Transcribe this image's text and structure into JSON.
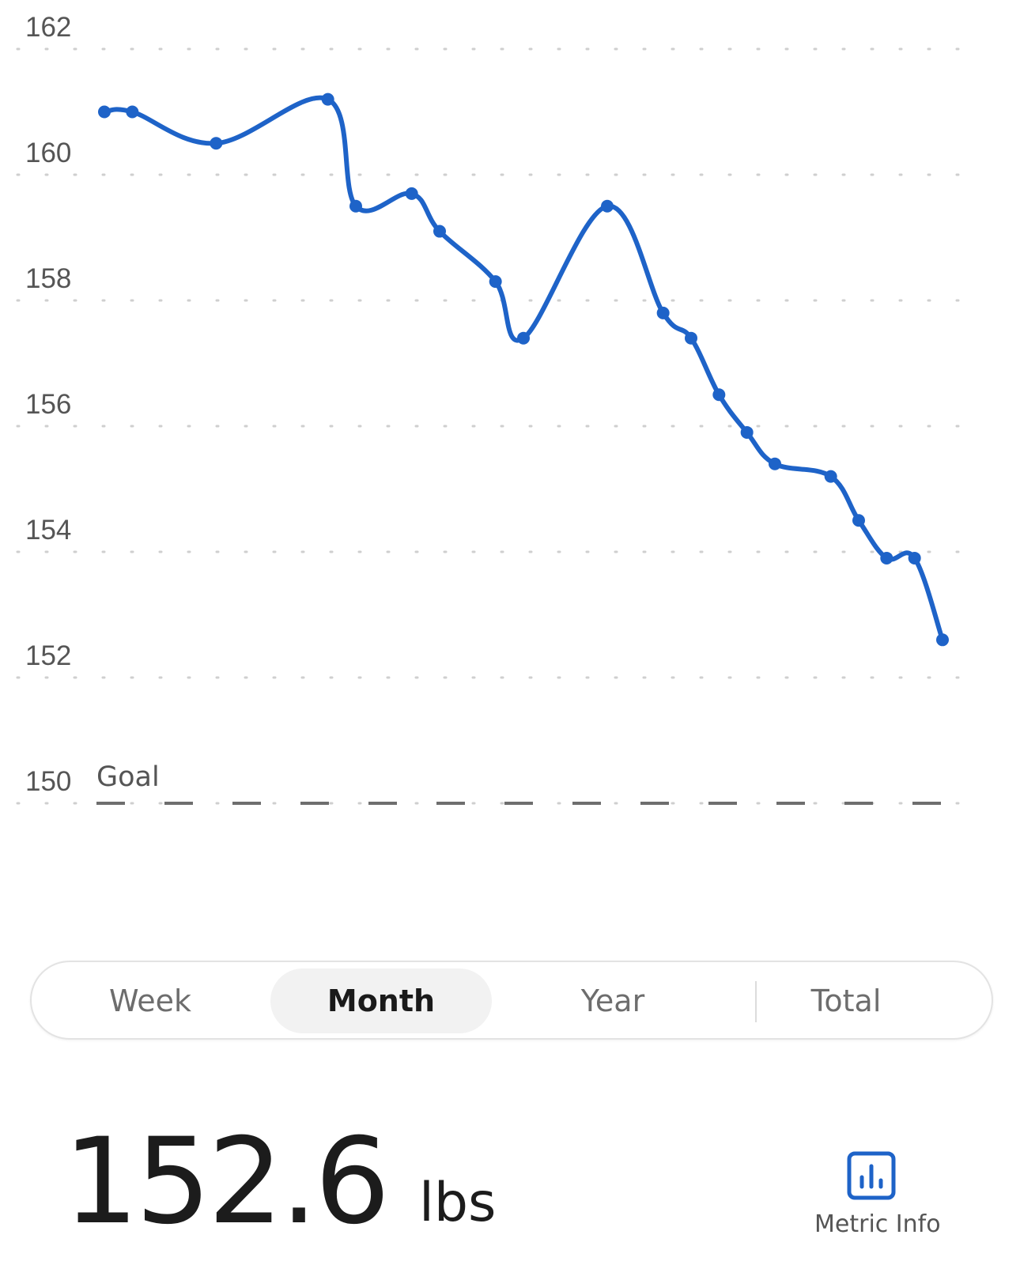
{
  "colors": {
    "line": "#1e63c8",
    "grid": "#cfcfcf",
    "goal_line": "#6e6e6e",
    "accent": "#1e63c8"
  },
  "chart_data": {
    "type": "line",
    "y_ticks": [
      "162",
      "160",
      "158",
      "156",
      "154",
      "152",
      "150"
    ],
    "ylim": [
      150,
      162
    ],
    "grid": true,
    "goal": {
      "label": "Goal",
      "value": 150
    },
    "series": [
      {
        "points": [
          [
            1,
            161.0
          ],
          [
            2,
            161.0
          ],
          [
            5,
            160.5
          ],
          [
            9,
            161.2
          ],
          [
            10,
            159.5
          ],
          [
            12,
            159.7
          ],
          [
            13,
            159.1
          ],
          [
            15,
            158.3
          ],
          [
            16,
            157.4
          ],
          [
            19,
            159.5
          ],
          [
            21,
            157.8
          ],
          [
            22,
            157.4
          ],
          [
            23,
            156.5
          ],
          [
            24,
            155.9
          ],
          [
            25,
            155.4
          ],
          [
            27,
            155.2
          ],
          [
            28,
            154.5
          ],
          [
            29,
            153.9
          ],
          [
            30,
            153.9
          ],
          [
            31,
            152.6
          ]
        ]
      }
    ]
  },
  "tabs": [
    {
      "label": "Week",
      "active": false
    },
    {
      "label": "Month",
      "active": true
    },
    {
      "label": "Year",
      "active": false
    },
    {
      "label": "Total",
      "active": false
    }
  ],
  "summary": {
    "value": "152.6",
    "unit": "lbs"
  },
  "metric_info": {
    "label": "Metric Info",
    "icon": "bar-chart-icon"
  }
}
